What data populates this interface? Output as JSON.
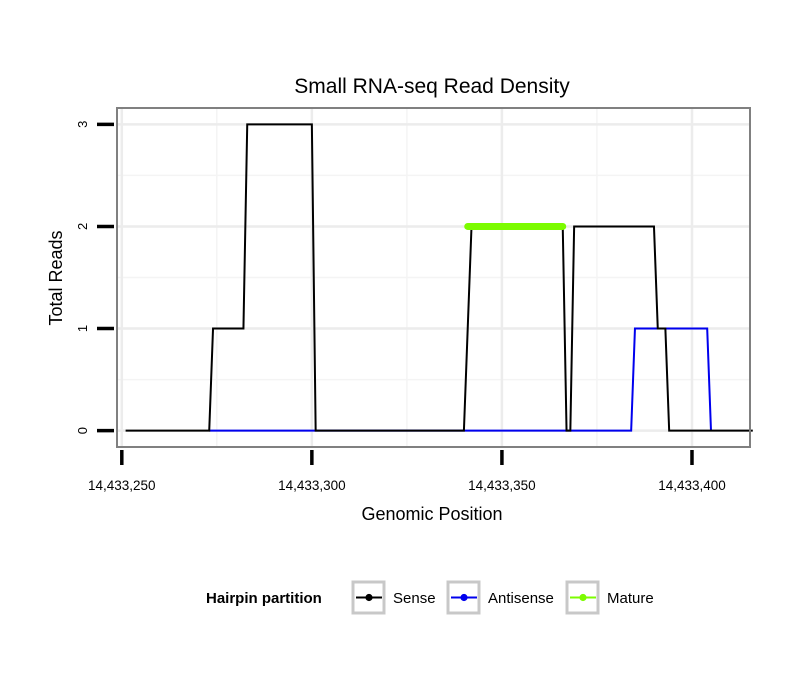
{
  "chart_data": {
    "type": "line",
    "title": "Small RNA-seq Read Density",
    "xlabel": "Genomic Position",
    "ylabel": "Total Reads",
    "xlim": [
      14433249,
      14433415
    ],
    "ylim": [
      -0.15,
      3.15
    ],
    "x_ticks": [
      14433250,
      14433300,
      14433350,
      14433400
    ],
    "x_tick_labels": [
      "14,433,250",
      "14,433,300",
      "14,433,350",
      "14,433,400"
    ],
    "y_ticks": [
      0,
      1,
      2,
      3
    ],
    "y_tick_labels": [
      "0",
      "1",
      "2",
      "3"
    ],
    "grid": true,
    "legend": {
      "title": "Hairpin partition",
      "position": "bottom",
      "entries": [
        "Sense",
        "Antisense",
        "Mature"
      ]
    },
    "series": [
      {
        "name": "Sense",
        "color": "#000000",
        "x": [
          14433251,
          14433273,
          14433274,
          14433282,
          14433283,
          14433300,
          14433301,
          14433340,
          14433342,
          14433366,
          14433367,
          14433368,
          14433369,
          14433390,
          14433391,
          14433393,
          14433394,
          14433416
        ],
        "y": [
          0,
          0,
          1,
          1,
          3,
          3,
          0,
          0,
          2,
          2,
          0,
          0,
          2,
          2,
          1,
          1,
          0,
          0
        ]
      },
      {
        "name": "Antisense",
        "color": "#0000ee",
        "x": [
          14433273,
          14433384,
          14433385,
          14433404,
          14433405
        ],
        "y": [
          0,
          0,
          1,
          1,
          0
        ]
      },
      {
        "name": "Mature",
        "color": "#7cfc00",
        "x": [
          14433341,
          14433366
        ],
        "y": [
          2,
          2
        ]
      }
    ]
  }
}
